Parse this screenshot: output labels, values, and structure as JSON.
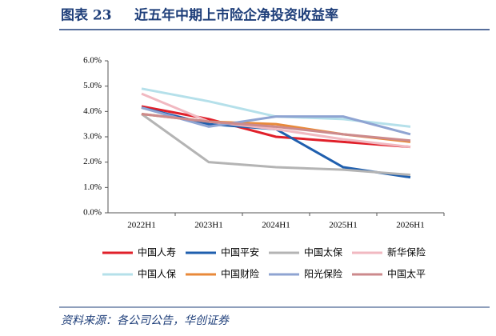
{
  "chart_data": {
    "type": "line",
    "figure_label": "图表 23",
    "title": "近五年中期上市险企净投资收益率",
    "source": "资料来源：各公司公告，华创证券",
    "categories": [
      "2022H1",
      "2023H1",
      "2024H1",
      "2025H1",
      "2026H1"
    ],
    "ylim": [
      0,
      6
    ],
    "yticks": [
      {
        "value": 0,
        "label": "0.0%"
      },
      {
        "value": 1,
        "label": "1.0%"
      },
      {
        "value": 2,
        "label": "2.0%"
      },
      {
        "value": 3,
        "label": "3.0%"
      },
      {
        "value": 4,
        "label": "4.0%"
      },
      {
        "value": 5,
        "label": "5.0%"
      },
      {
        "value": 6,
        "label": "6.0%"
      }
    ],
    "grid": false,
    "legend": "bottom",
    "series": [
      {
        "name": "中国人寿",
        "color": "#e0202a",
        "values": [
          4.2,
          3.7,
          3.0,
          2.8,
          2.6
        ]
      },
      {
        "name": "中国平安",
        "color": "#1f5fae",
        "values": [
          4.15,
          3.5,
          3.3,
          1.8,
          1.4
        ]
      },
      {
        "name": "中国太保",
        "color": "#b4b4b4",
        "values": [
          3.9,
          2.0,
          1.8,
          1.7,
          1.5
        ]
      },
      {
        "name": "新华保险",
        "color": "#f1b9c1",
        "values": [
          4.7,
          3.6,
          3.3,
          2.9,
          2.6
        ]
      },
      {
        "name": "中国人保",
        "color": "#b5e0ea",
        "values": [
          4.9,
          4.4,
          3.8,
          3.7,
          3.4
        ]
      },
      {
        "name": "中国财险",
        "color": "#e8893a",
        "values": [
          3.9,
          3.6,
          3.5,
          3.1,
          2.8
        ]
      },
      {
        "name": "阳光保险",
        "color": "#8fa4d2",
        "values": [
          4.15,
          3.4,
          3.8,
          3.8,
          3.1
        ]
      },
      {
        "name": "中国太平",
        "color": "#cc8a8c",
        "values": [
          3.9,
          3.6,
          3.4,
          3.1,
          2.85
        ]
      }
    ]
  }
}
